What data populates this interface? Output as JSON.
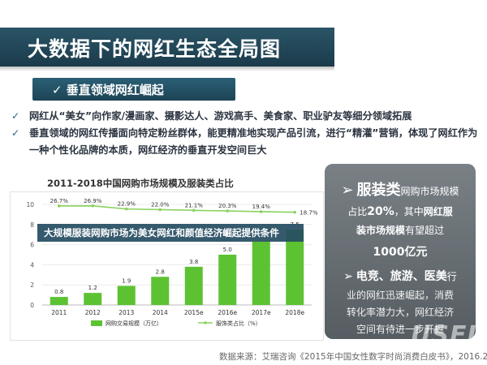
{
  "page": {
    "title": "大数据下的网红生态全局图",
    "section_label": "✓ 垂直领域网红崛起",
    "bullets": [
      "网红从“美女”向作家/漫画家、摄影达人、游戏高手、美食家、职业驴友等细分领域拓展",
      "垂直领域的网红传播面向特定粉丝群体，能更精准地实现产品引流，进行“精灌”营销，体现了网红作为一种个性化品牌的本质，网红经济的垂直开发空间巨大"
    ],
    "chart_heading": "2011-2018中国网购市场规模及服装类占比",
    "overlay_banner": "大规模服装网购市场为美女网红和颜值经济崛起提供条件",
    "callout": {
      "line1_bold": "服装类",
      "line1_rest": "网购市场规模",
      "line2_pre": "占比",
      "line2_bold": "20%",
      "line2_mid": "，其中",
      "line2_bold2": "网红服",
      "line3_bold": "装市场规模",
      "line3_rest": "有望超过",
      "line4_bold": "1000亿元",
      "line5_bold": "电竞、旅游、医美",
      "line5_rest": "行",
      "line6": "业的网红迅速崛起，消费",
      "line7": "转化率潜力大，网红经济",
      "line8": "空间有待进一步开掘"
    },
    "source": "数据来源：艾瑞咨询《2015年中国女性数字时尚消费白皮书》，2016.2",
    "watermark": "USEIT",
    "colors": {
      "title_bg": "#1f4556",
      "bar_green": "#5cc232",
      "line_green": "#8bd25f",
      "callout_bg": "#62696e"
    }
  },
  "chart_data": {
    "type": "bar",
    "title": "2011-2018中国网购市场规模及服装类占比",
    "categories": [
      "2011",
      "2012",
      "2013",
      "2014",
      "2015e",
      "2016e",
      "2017e",
      "2018e"
    ],
    "ylim": [
      0,
      10
    ],
    "yticks": [
      "0",
      "2",
      "4",
      "6",
      "8",
      "10"
    ],
    "series": [
      {
        "name": "网购交易规模（万亿）",
        "type": "bar",
        "values": [
          0.8,
          1.2,
          1.9,
          2.8,
          3.8,
          5.0,
          6.3,
          7.5
        ],
        "labels": [
          "0.8",
          "1.2",
          "1.9",
          "2.8",
          "3.8",
          "5.0",
          "6.3",
          "7.5"
        ]
      },
      {
        "name": "服饰类占比（%）",
        "type": "line",
        "values": [
          26.7,
          26.9,
          22.9,
          22.0,
          21.1,
          20.3,
          19.4,
          18.7
        ],
        "labels": [
          "26.7%",
          "26.9%",
          "22.9%",
          "22.0%",
          "21.1%",
          "20.3%",
          "19.4%",
          "18.7%"
        ]
      }
    ]
  }
}
